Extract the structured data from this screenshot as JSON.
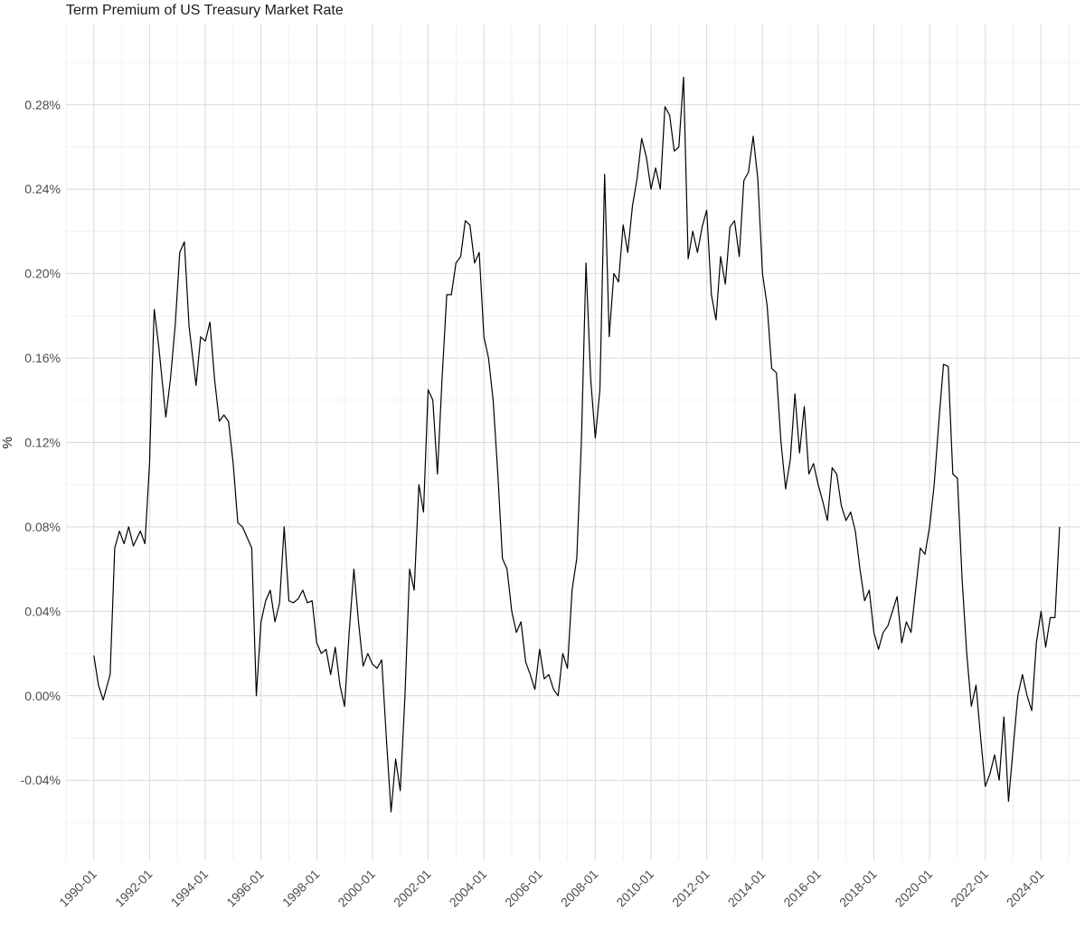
{
  "chart_data": {
    "type": "line",
    "title": "Term Premium of US Treasury Market Rate",
    "xlabel": "",
    "ylabel": "%",
    "ylim": [
      -0.078,
      0.318
    ],
    "xlim": [
      "1989-01",
      "2025-06"
    ],
    "grid": true,
    "x_ticks": [
      "1990-01",
      "1992-01",
      "1994-01",
      "1996-01",
      "1998-01",
      "2000-01",
      "2002-01",
      "2004-01",
      "2006-01",
      "2008-01",
      "2010-01",
      "2012-01",
      "2014-01",
      "2016-01",
      "2018-01",
      "2020-01",
      "2022-01",
      "2024-01"
    ],
    "y_ticks": [
      -0.04,
      0.0,
      0.04,
      0.08,
      0.12,
      0.16,
      0.2,
      0.24,
      0.28
    ],
    "y_tick_labels": [
      "-0.04%",
      "0.00%",
      "0.04%",
      "0.08%",
      "0.12%",
      "0.16%",
      "0.20%",
      "0.24%",
      "0.28%"
    ],
    "series": [
      {
        "x": [
          "1990-01",
          "1990-03",
          "1990-05",
          "1990-08",
          "1990-10",
          "1990-12",
          "1991-02",
          "1991-04",
          "1991-06",
          "1991-09",
          "1991-11",
          "1992-01",
          "1992-02",
          "1992-03",
          "1992-05",
          "1992-08",
          "1992-10",
          "1992-12",
          "1993-02",
          "1993-04",
          "1993-06",
          "1993-09",
          "1993-11",
          "1994-01",
          "1994-03",
          "1994-05",
          "1994-07",
          "1994-09",
          "1994-11",
          "1995-01",
          "1995-03",
          "1995-05",
          "1995-07",
          "1995-09",
          "1995-11",
          "1996-01",
          "1996-03",
          "1996-05",
          "1996-07",
          "1996-09",
          "1996-11",
          "1997-01",
          "1997-03",
          "1997-05",
          "1997-07",
          "1997-09",
          "1997-11",
          "1998-01",
          "1998-03",
          "1998-05",
          "1998-07",
          "1998-09",
          "1998-11",
          "1999-01",
          "1999-03",
          "1999-05",
          "1999-07",
          "1999-09",
          "1999-11",
          "2000-01",
          "2000-03",
          "2000-05",
          "2000-07",
          "2000-09",
          "2000-11",
          "2001-01",
          "2001-03",
          "2001-05",
          "2001-07",
          "2001-09",
          "2001-11",
          "2002-01",
          "2002-03",
          "2002-05",
          "2002-07",
          "2002-09",
          "2002-11",
          "2003-01",
          "2003-03",
          "2003-05",
          "2003-07",
          "2003-09",
          "2003-11",
          "2004-01",
          "2004-03",
          "2004-05",
          "2004-07",
          "2004-09",
          "2004-11",
          "2005-01",
          "2005-03",
          "2005-05",
          "2005-07",
          "2005-09",
          "2005-11",
          "2006-01",
          "2006-03",
          "2006-05",
          "2006-07",
          "2006-09",
          "2006-11",
          "2007-01",
          "2007-03",
          "2007-05",
          "2007-07",
          "2007-09",
          "2007-11",
          "2008-01",
          "2008-03",
          "2008-05",
          "2008-07",
          "2008-09",
          "2008-11",
          "2009-01",
          "2009-03",
          "2009-05",
          "2009-07",
          "2009-09",
          "2009-11",
          "2010-01",
          "2010-03",
          "2010-05",
          "2010-07",
          "2010-09",
          "2010-11",
          "2011-01",
          "2011-03",
          "2011-05",
          "2011-07",
          "2011-09",
          "2011-11",
          "2012-01",
          "2012-03",
          "2012-05",
          "2012-07",
          "2012-09",
          "2012-11",
          "2013-01",
          "2013-03",
          "2013-05",
          "2013-07",
          "2013-09",
          "2013-11",
          "2014-01",
          "2014-03",
          "2014-05",
          "2014-07",
          "2014-09",
          "2014-11",
          "2015-01",
          "2015-03",
          "2015-05",
          "2015-07",
          "2015-09",
          "2015-11",
          "2016-01",
          "2016-03",
          "2016-05",
          "2016-07",
          "2016-09",
          "2016-11",
          "2017-01",
          "2017-03",
          "2017-05",
          "2017-07",
          "2017-09",
          "2017-11",
          "2018-01",
          "2018-03",
          "2018-05",
          "2018-07",
          "2018-09",
          "2018-11",
          "2019-01",
          "2019-03",
          "2019-05",
          "2019-07",
          "2019-09",
          "2019-11",
          "2020-01",
          "2020-03",
          "2020-05",
          "2020-07",
          "2020-09",
          "2020-11",
          "2021-01",
          "2021-03",
          "2021-05",
          "2021-07",
          "2021-09",
          "2021-11",
          "2022-01",
          "2022-03",
          "2022-05",
          "2022-07",
          "2022-09",
          "2022-11",
          "2023-01",
          "2023-03",
          "2023-05",
          "2023-07",
          "2023-09",
          "2023-11",
          "2024-01",
          "2024-03",
          "2024-05",
          "2024-07",
          "2024-09"
        ],
        "values": [
          0.019,
          0.005,
          -0.002,
          0.01,
          0.07,
          0.078,
          0.072,
          0.08,
          0.071,
          0.078,
          0.072,
          0.11,
          0.15,
          0.183,
          0.165,
          0.132,
          0.15,
          0.175,
          0.21,
          0.215,
          0.175,
          0.147,
          0.17,
          0.168,
          0.177,
          0.15,
          0.13,
          0.133,
          0.13,
          0.11,
          0.082,
          0.08,
          0.075,
          0.07,
          0.0,
          0.035,
          0.045,
          0.05,
          0.035,
          0.044,
          0.08,
          0.045,
          0.044,
          0.046,
          0.05,
          0.044,
          0.045,
          0.025,
          0.02,
          0.022,
          0.01,
          0.023,
          0.005,
          -0.005,
          0.03,
          0.06,
          0.035,
          0.014,
          0.02,
          0.015,
          0.013,
          0.017,
          -0.02,
          -0.055,
          -0.03,
          -0.045,
          0.0,
          0.06,
          0.05,
          0.1,
          0.087,
          0.145,
          0.14,
          0.105,
          0.15,
          0.19,
          0.19,
          0.205,
          0.208,
          0.225,
          0.223,
          0.205,
          0.21,
          0.17,
          0.16,
          0.14,
          0.105,
          0.065,
          0.06,
          0.04,
          0.03,
          0.035,
          0.016,
          0.01,
          0.003,
          0.022,
          0.008,
          0.01,
          0.003,
          0.0,
          0.02,
          0.013,
          0.05,
          0.065,
          0.12,
          0.205,
          0.15,
          0.122,
          0.145,
          0.247,
          0.17,
          0.2,
          0.196,
          0.223,
          0.21,
          0.232,
          0.245,
          0.264,
          0.255,
          0.24,
          0.25,
          0.24,
          0.279,
          0.275,
          0.258,
          0.26,
          0.293,
          0.207,
          0.22,
          0.21,
          0.222,
          0.23,
          0.19,
          0.178,
          0.208,
          0.195,
          0.222,
          0.225,
          0.208,
          0.244,
          0.248,
          0.265,
          0.245,
          0.2,
          0.185,
          0.155,
          0.153,
          0.12,
          0.098,
          0.112,
          0.143,
          0.115,
          0.137,
          0.105,
          0.11,
          0.1,
          0.092,
          0.083,
          0.108,
          0.105,
          0.09,
          0.083,
          0.087,
          0.078,
          0.06,
          0.045,
          0.05,
          0.03,
          0.022,
          0.03,
          0.033,
          0.04,
          0.047,
          0.025,
          0.035,
          0.03,
          0.05,
          0.07,
          0.067,
          0.08,
          0.1,
          0.13,
          0.157,
          0.156,
          0.105,
          0.103,
          0.055,
          0.02,
          -0.005,
          0.005,
          -0.02,
          -0.043,
          -0.037,
          -0.028,
          -0.04,
          -0.01,
          -0.05,
          -0.025,
          0.0,
          0.01,
          0.0,
          -0.007,
          0.025,
          0.04,
          0.023,
          0.037,
          0.037,
          0.08
        ]
      }
    ]
  },
  "colors": {
    "line": "#000000",
    "grid_major": "#d9d9d9",
    "grid_minor": "#ededed",
    "text": "#4d4d4d"
  }
}
